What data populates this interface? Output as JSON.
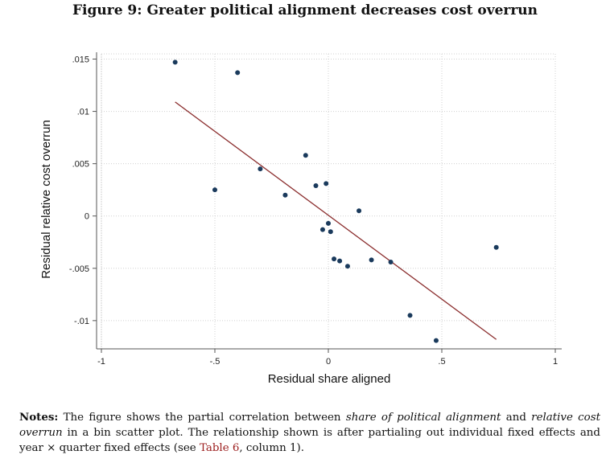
{
  "figure_title": "Figure 9: Greater political alignment decreases cost overrun",
  "notes": {
    "label": "Notes:",
    "part1": " The figure shows the partial correlation between ",
    "em1": "share of political alignment",
    "part2": " and ",
    "em2": "relative cost overrun",
    "part3": " in a bin scatter plot. The relationship shown is after partialing out individual fixed effects and year × quarter fixed effects (see ",
    "ref": "Table 6",
    "part4": ", column 1)."
  },
  "colors": {
    "points": "#1a3a5c",
    "fit_line": "#8b2e2e",
    "grid": "#d0d0d0",
    "axis": "#555555"
  },
  "chart_data": {
    "type": "scatter",
    "xlabel": "Residual share aligned",
    "ylabel": "Residual relative cost overrun",
    "xlim": [
      -1,
      1
    ],
    "ylim": [
      -0.0127,
      0.0155
    ],
    "x_ticks": [
      -1,
      -0.5,
      0,
      0.5,
      1
    ],
    "x_tick_labels": [
      "-1",
      "-.5",
      "0",
      ".5",
      "1"
    ],
    "y_ticks": [
      -0.01,
      -0.005,
      0,
      0.005,
      0.01,
      0.015
    ],
    "y_tick_labels": [
      "-.01",
      "-.005",
      "0",
      ".005",
      ".01",
      ".015"
    ],
    "grid": true,
    "points": [
      {
        "x": -0.675,
        "y": 0.0147
      },
      {
        "x": -0.4,
        "y": 0.0137
      },
      {
        "x": -0.5,
        "y": 0.0025
      },
      {
        "x": -0.3,
        "y": 0.0045
      },
      {
        "x": -0.19,
        "y": 0.002
      },
      {
        "x": -0.1,
        "y": 0.0058
      },
      {
        "x": -0.055,
        "y": 0.0029
      },
      {
        "x": -0.01,
        "y": 0.0031
      },
      {
        "x": -0.025,
        "y": -0.0013
      },
      {
        "x": 0.0,
        "y": -0.0007
      },
      {
        "x": 0.01,
        "y": -0.0015
      },
      {
        "x": 0.025,
        "y": -0.0041
      },
      {
        "x": 0.05,
        "y": -0.0043
      },
      {
        "x": 0.085,
        "y": -0.0048
      },
      {
        "x": 0.135,
        "y": 0.0005
      },
      {
        "x": 0.19,
        "y": -0.0042
      },
      {
        "x": 0.275,
        "y": -0.0044
      },
      {
        "x": 0.36,
        "y": -0.0095
      },
      {
        "x": 0.475,
        "y": -0.0119
      },
      {
        "x": 0.74,
        "y": -0.003
      }
    ],
    "fit_line": {
      "x": [
        -0.675,
        0.74
      ],
      "y": [
        0.0109,
        -0.0118
      ]
    }
  }
}
